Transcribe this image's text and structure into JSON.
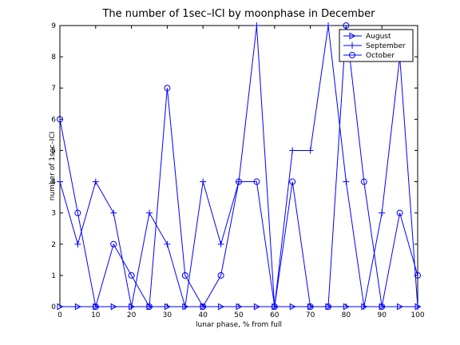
{
  "chart_data": {
    "type": "line",
    "title": "The number of 1sec–ICI by moonphase in December",
    "xlabel": "lunar phase, % from full",
    "ylabel": "number of 1sec–ICI",
    "xlim": [
      0,
      100
    ],
    "ylim": [
      0,
      9
    ],
    "xticks": [
      0,
      10,
      20,
      30,
      40,
      50,
      60,
      70,
      80,
      90,
      100
    ],
    "yticks": [
      0,
      1,
      2,
      3,
      4,
      5,
      6,
      7,
      8,
      9
    ],
    "grid": false,
    "legend_position": "top-right",
    "x": [
      0,
      5,
      10,
      15,
      20,
      25,
      30,
      35,
      40,
      45,
      50,
      55,
      60,
      65,
      70,
      75,
      80,
      85,
      90,
      95,
      100
    ],
    "series": [
      {
        "name": "August",
        "marker": "triangle-right",
        "color": "#0000ff",
        "values": [
          0,
          0,
          0,
          0,
          0,
          0,
          0,
          0,
          0,
          0,
          0,
          0,
          0,
          0,
          0,
          0,
          0,
          0,
          0,
          0,
          0
        ]
      },
      {
        "name": "September",
        "marker": "plus",
        "color": "#0000ff",
        "values": [
          4,
          2,
          4,
          3,
          0,
          3,
          2,
          0,
          4,
          2,
          4,
          9,
          0,
          5,
          5,
          9,
          4,
          0,
          3,
          8,
          0
        ]
      },
      {
        "name": "October",
        "marker": "circle",
        "color": "#0000ff",
        "values": [
          6,
          3,
          0,
          2,
          1,
          0,
          7,
          1,
          0,
          1,
          4,
          4,
          0,
          4,
          0,
          0,
          9,
          4,
          0,
          3,
          1
        ]
      }
    ]
  }
}
